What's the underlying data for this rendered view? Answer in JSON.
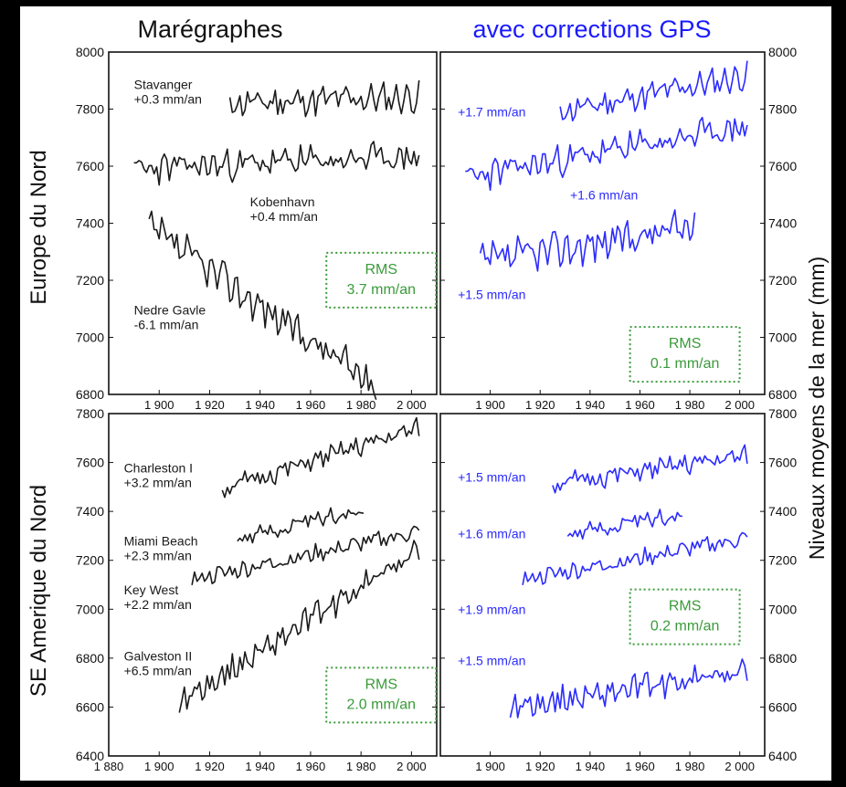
{
  "headers": {
    "left": "Marégraphes",
    "right": "avec corrections GPS",
    "right_color": "#1a1aff",
    "row_top": "Europe du Nord",
    "row_bottom": "SE Amerique du Nord",
    "y_right": "Niveaux moyens de la mer (mm)"
  },
  "colors": {
    "tide": "#1a1a1a",
    "gps": "#2b2bff",
    "rms": "#3a9a3a"
  },
  "chart_data": [
    {
      "id": "tl",
      "type": "line",
      "panel": "Marégraphes — Europe du Nord",
      "xlim": [
        1880,
        2010
      ],
      "ylim": [
        6800,
        8000
      ],
      "yticks": [
        6800,
        7000,
        7200,
        7400,
        7600,
        7800,
        8000
      ],
      "xticks": [
        {
          "v": 1900,
          "l": "1 900"
        },
        {
          "v": 1920,
          "l": "1 920"
        },
        {
          "v": 1940,
          "l": "1 940"
        },
        {
          "v": 1960,
          "l": "1 960"
        },
        {
          "v": 1980,
          "l": "1 980"
        },
        {
          "v": 2000,
          "l": "2 000"
        }
      ],
      "color": "tide",
      "series": [
        {
          "name": "Stavanger",
          "rate": "+0.3 mm/an",
          "x0": 1928,
          "x1": 2003,
          "level": 7820,
          "slope": 0.3,
          "amp": 45,
          "seed": 11,
          "lx": 1890,
          "ly": 7870,
          "anchor": "start"
        },
        {
          "name": "Kobenhavn",
          "rate": "+0.4 mm/an",
          "x0": 1890,
          "x1": 2003,
          "level": 7590,
          "slope": 0.4,
          "amp": 45,
          "seed": 23,
          "lx": 1936,
          "ly": 7460,
          "anchor": "start"
        },
        {
          "name": "Nedre Gavle",
          "rate": "-6.1 mm/an",
          "x0": 1896,
          "x1": 1986,
          "level": 7380,
          "slope": -6.1,
          "amp": 55,
          "seed": 37,
          "lx": 1890,
          "ly": 7080,
          "anchor": "start"
        }
      ],
      "rms": {
        "label": "RMS",
        "value": "3.7 mm/an",
        "cx": 1988,
        "cy": 7210
      }
    },
    {
      "id": "tr",
      "type": "line",
      "panel": "avec corrections GPS — Europe du Nord",
      "xlim": [
        1880,
        2010
      ],
      "ylim": [
        6800,
        8000
      ],
      "yticks": [
        6800,
        7000,
        7200,
        7400,
        7600,
        7800,
        8000
      ],
      "xticks": [
        {
          "v": 1900,
          "l": "1 900"
        },
        {
          "v": 1920,
          "l": "1 920"
        },
        {
          "v": 1940,
          "l": "1 940"
        },
        {
          "v": 1960,
          "l": "1 960"
        },
        {
          "v": 1980,
          "l": "1 980"
        },
        {
          "v": 2000,
          "l": "2 000"
        }
      ],
      "color": "gps",
      "series": [
        {
          "name": "",
          "rate": "+1.7 mm/an",
          "x0": 1928,
          "x1": 2003,
          "level": 7790,
          "slope": 1.7,
          "amp": 40,
          "seed": 11,
          "lx": 1887,
          "ly": 7790,
          "anchor": "start"
        },
        {
          "name": "",
          "rate": "+1.6 mm/an",
          "x0": 1890,
          "x1": 2003,
          "level": 7560,
          "slope": 1.6,
          "amp": 45,
          "seed": 23,
          "lx": 1932,
          "ly": 7500,
          "anchor": "start"
        },
        {
          "name": "",
          "rate": "+1.5 mm/an",
          "x0": 1896,
          "x1": 1982,
          "level": 7260,
          "slope": 1.5,
          "amp": 55,
          "seed": 37,
          "lx": 1887,
          "ly": 7150,
          "anchor": "start"
        }
      ],
      "rms": {
        "label": "RMS",
        "value": "0.1 mm/an",
        "cx": 1978,
        "cy": 6950
      }
    },
    {
      "id": "bl",
      "type": "line",
      "panel": "Marégraphes — SE Amerique du Nord",
      "xlim": [
        1880,
        2010
      ],
      "ylim": [
        6400,
        7800
      ],
      "yticks": [
        6400,
        6600,
        6800,
        7000,
        7200,
        7400,
        7600,
        7800
      ],
      "xticks": [
        {
          "v": 1880,
          "l": "1 880"
        },
        {
          "v": 1900,
          "l": "1 900"
        },
        {
          "v": 1920,
          "l": "1 920"
        },
        {
          "v": 1940,
          "l": "1 940"
        },
        {
          "v": 1960,
          "l": "1 960"
        },
        {
          "v": 1980,
          "l": "1 980"
        },
        {
          "v": 2000,
          "l": "2 000"
        }
      ],
      "color": "tide",
      "series": [
        {
          "name": "Charleston I",
          "rate": "+3.2 mm/an",
          "x0": 1925,
          "x1": 2003,
          "level": 7490,
          "slope": 3.2,
          "amp": 35,
          "seed": 51,
          "lx": 1886,
          "ly": 7560,
          "anchor": "start"
        },
        {
          "name": "Miami Beach",
          "rate": "+2.3 mm/an",
          "x0": 1931,
          "x1": 1981,
          "level": 7290,
          "slope": 2.3,
          "amp": 30,
          "seed": 63,
          "lx": 1886,
          "ly": 7260,
          "anchor": "start"
        },
        {
          "name": "Key West",
          "rate": "+2.2 mm/an",
          "x0": 1913,
          "x1": 2003,
          "level": 7120,
          "slope": 2.2,
          "amp": 30,
          "seed": 77,
          "lx": 1886,
          "ly": 7060,
          "anchor": "start"
        },
        {
          "name": "Galveston II",
          "rate": "+6.5 mm/an",
          "x0": 1908,
          "x1": 2003,
          "level": 6620,
          "slope": 6.5,
          "amp": 45,
          "seed": 89,
          "lx": 1886,
          "ly": 6790,
          "anchor": "start"
        }
      ],
      "rms": {
        "label": "RMS",
        "value": "2.0 mm/an",
        "cx": 1988,
        "cy": 6660
      }
    },
    {
      "id": "br",
      "type": "line",
      "panel": "avec corrections GPS — SE Amerique du Nord",
      "xlim": [
        1880,
        2010
      ],
      "ylim": [
        6400,
        7800
      ],
      "yticks": [
        6400,
        6600,
        6800,
        7000,
        7200,
        7400,
        7600,
        7800
      ],
      "xticks": [
        {
          "v": 1900,
          "l": "1 900"
        },
        {
          "v": 1920,
          "l": "1 920"
        },
        {
          "v": 1940,
          "l": "1 940"
        },
        {
          "v": 1960,
          "l": "1 960"
        },
        {
          "v": 1980,
          "l": "1 980"
        },
        {
          "v": 2000,
          "l": "2 000"
        }
      ],
      "color": "gps",
      "series": [
        {
          "name": "",
          "rate": "+1.5 mm/an",
          "x0": 1925,
          "x1": 2003,
          "level": 7510,
          "slope": 1.5,
          "amp": 35,
          "seed": 51,
          "lx": 1887,
          "ly": 7540,
          "anchor": "start"
        },
        {
          "name": "",
          "rate": "+1.6 mm/an",
          "x0": 1931,
          "x1": 1977,
          "level": 7310,
          "slope": 1.6,
          "amp": 30,
          "seed": 63,
          "lx": 1887,
          "ly": 7310,
          "anchor": "start"
        },
        {
          "name": "",
          "rate": "+1.9 mm/an",
          "x0": 1913,
          "x1": 2003,
          "level": 7120,
          "slope": 1.9,
          "amp": 30,
          "seed": 77,
          "lx": 1887,
          "ly": 7000,
          "anchor": "start"
        },
        {
          "name": "",
          "rate": "+1.5 mm/an",
          "x0": 1908,
          "x1": 2003,
          "level": 6600,
          "slope": 1.5,
          "amp": 45,
          "seed": 89,
          "lx": 1887,
          "ly": 6790,
          "anchor": "start"
        }
      ],
      "rms": {
        "label": "RMS",
        "value": "0.2 mm/an",
        "cx": 1978,
        "cy": 6980
      }
    }
  ]
}
